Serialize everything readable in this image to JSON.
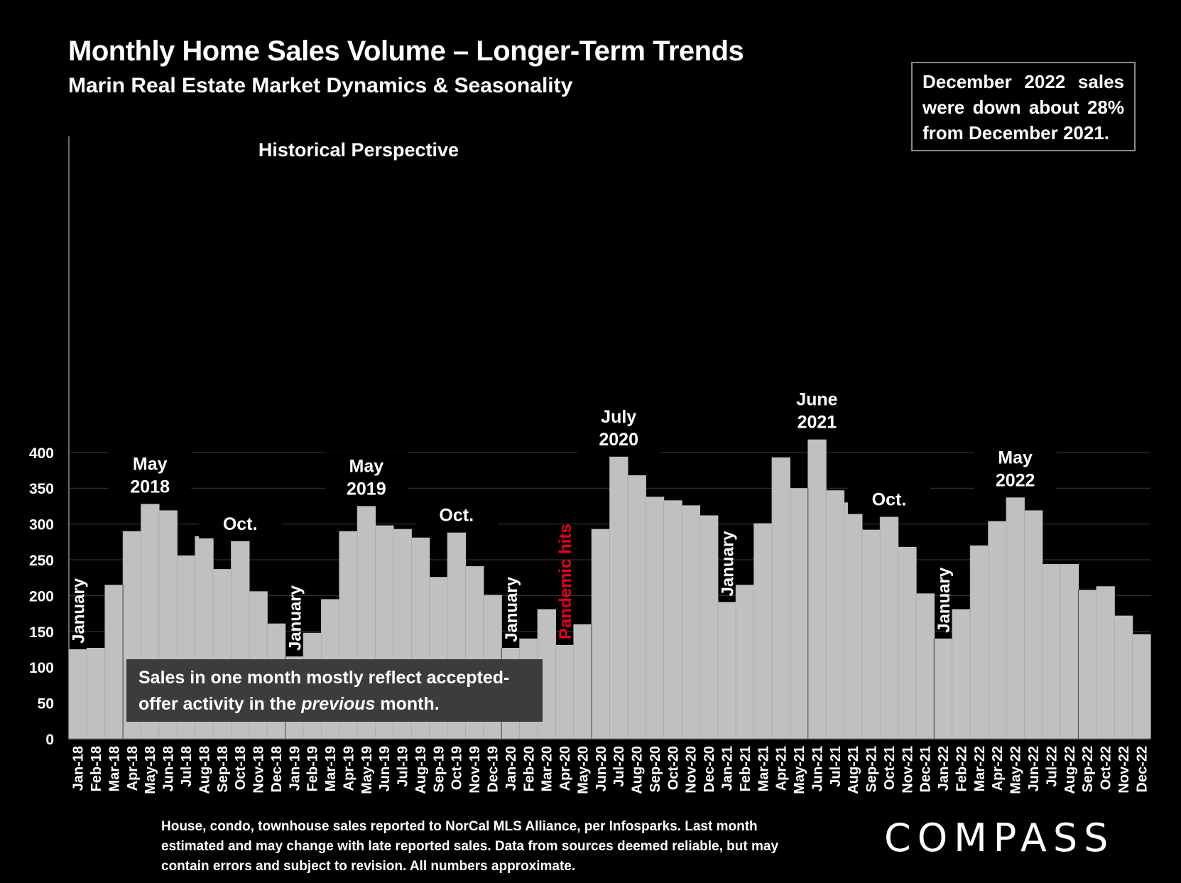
{
  "header": {
    "title": "Monthly Home Sales Volume – Longer-Term Trends",
    "subtitle": "Marin Real Estate Market Dynamics & Seasonality"
  },
  "callout": "December 2022 sales were down about 28% from December 2021.",
  "footnote": "House, condo, townhouse sales reported to NorCal MLS Alliance, per Infosparks. Last month estimated and may change with late reported sales. Data from sources deemed reliable, but may contain errors and subject to revision. All numbers approximate.",
  "logo": "COMPASS",
  "colors": {
    "background": "#000000",
    "bar": "#c0c0c0",
    "gridline": "#3a3a3a",
    "text": "#ffffff",
    "highlight": "#e8001c",
    "note_box": "#3c3c3c"
  },
  "chart_data": {
    "type": "bar",
    "title": "Historical Perspective",
    "xlabel": "",
    "ylabel": "",
    "ylim": [
      0,
      420
    ],
    "yticks": [
      0,
      50,
      100,
      150,
      200,
      250,
      300,
      350,
      400
    ],
    "grid": true,
    "categories": [
      "Jan-18",
      "Feb-18",
      "Mar-18",
      "Apr-18",
      "May-18",
      "Jun-18",
      "Jul-18",
      "Aug-18",
      "Sep-18",
      "Oct-18",
      "Nov-18",
      "Dec-18",
      "Jan-19",
      "Feb-19",
      "Mar-19",
      "Apr-19",
      "May-19",
      "Jun-19",
      "Jul-19",
      "Aug-19",
      "Sep-19",
      "Oct-19",
      "Nov-19",
      "Dec-19",
      "Jan-20",
      "Feb-20",
      "Mar-20",
      "Apr-20",
      "May-20",
      "Jun-20",
      "Jul-20",
      "Aug-20",
      "Sep-20",
      "Oct-20",
      "Nov-20",
      "Dec-20",
      "Jan-21",
      "Feb-21",
      "Mar-21",
      "Apr-21",
      "May-21",
      "Jun-21",
      "Jul-21",
      "Aug-21",
      "Sep-21",
      "Oct-21",
      "Nov-21",
      "Dec-21",
      "Jan-22",
      "Feb-22",
      "Mar-22",
      "Apr-22",
      "May-22",
      "Jun-22",
      "Jul-22",
      "Aug-22",
      "Sep-22",
      "Oct-22",
      "Nov-22",
      "Dec-22"
    ],
    "values": [
      125,
      127,
      215,
      290,
      328,
      319,
      256,
      283,
      237,
      276,
      206,
      161,
      115,
      148,
      195,
      290,
      325,
      298,
      293,
      281,
      226,
      288,
      241,
      201,
      127,
      140,
      181,
      131,
      160,
      293,
      394,
      368,
      338,
      333,
      326,
      312,
      191,
      215,
      301,
      393,
      350,
      418,
      347,
      330,
      292,
      310,
      268,
      203,
      140,
      181,
      270,
      304,
      337,
      319,
      244,
      244,
      208,
      213,
      172,
      146
    ],
    "annotations": [
      {
        "text": "January",
        "category": "Jan-18",
        "rotated": true
      },
      {
        "text": "May 2018",
        "category": "May-18"
      },
      {
        "text": "Oct.",
        "category": "Oct-18"
      },
      {
        "text": "January",
        "category": "Jan-19",
        "rotated": true
      },
      {
        "text": "May 2019",
        "category": "May-19"
      },
      {
        "text": "Oct.",
        "category": "Oct-19"
      },
      {
        "text": "January",
        "category": "Jan-20",
        "rotated": true
      },
      {
        "text": "Pandemic hits",
        "category": "Apr-20",
        "rotated": true,
        "highlight": true
      },
      {
        "text": "July 2020",
        "category": "Jul-20"
      },
      {
        "text": "January",
        "category": "Jan-21",
        "rotated": true
      },
      {
        "text": "June 2021",
        "category": "Jun-21"
      },
      {
        "text": "Oct.",
        "category": "Oct-21"
      },
      {
        "text": "January",
        "category": "Jan-22",
        "rotated": true
      },
      {
        "text": "May 2022",
        "category": "May-22"
      }
    ],
    "note": [
      "Sales in one month mostly reflect accepted-",
      "offer activity in the ",
      "previous",
      " month."
    ]
  }
}
